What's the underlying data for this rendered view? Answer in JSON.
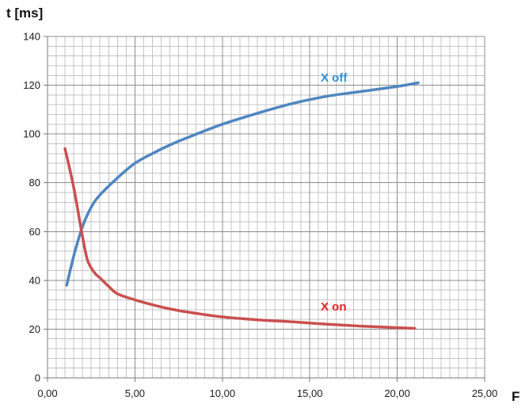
{
  "chart_data": {
    "type": "line",
    "title": "",
    "ylabel": "t [ms]",
    "xlabel": "F",
    "xlim": [
      0,
      25
    ],
    "ylim": [
      0,
      140
    ],
    "x_ticks": [
      0,
      5,
      10,
      15,
      20,
      25
    ],
    "x_tick_labels": [
      "0,00",
      "5,00",
      "10,00",
      "15,00",
      "20,00",
      "25,00"
    ],
    "y_ticks": [
      0,
      20,
      40,
      60,
      80,
      100,
      120,
      140
    ],
    "y_tick_labels": [
      "0",
      "20",
      "40",
      "60",
      "80",
      "100",
      "120",
      "140"
    ],
    "minor_grid_x_step": 0.5,
    "minor_grid_y_step": 4,
    "grid": true,
    "series": [
      {
        "name": "X off",
        "color": "#4f86c0",
        "label_color": "#2e8fd6",
        "points": [
          [
            1.1,
            38
          ],
          [
            1.5,
            50
          ],
          [
            2.0,
            62
          ],
          [
            2.5,
            70
          ],
          [
            3.0,
            75
          ],
          [
            4.0,
            82
          ],
          [
            5.0,
            88
          ],
          [
            6.0,
            92
          ],
          [
            7.0,
            95.5
          ],
          [
            8.0,
            98.5
          ],
          [
            10.0,
            104
          ],
          [
            12.0,
            108.5
          ],
          [
            14.0,
            112.5
          ],
          [
            16.0,
            115.5
          ],
          [
            18.0,
            117.5
          ],
          [
            20.0,
            119.5
          ],
          [
            21.2,
            121
          ]
        ]
      },
      {
        "name": "X on",
        "color": "#c9504f",
        "label_color": "#e02020",
        "points": [
          [
            1.0,
            94
          ],
          [
            1.5,
            78
          ],
          [
            2.0,
            58
          ],
          [
            2.3,
            48
          ],
          [
            2.7,
            43
          ],
          [
            3.0,
            41
          ],
          [
            3.5,
            37.5
          ],
          [
            4.0,
            34.5
          ],
          [
            5.0,
            32
          ],
          [
            6.0,
            30
          ],
          [
            7.0,
            28.3
          ],
          [
            8.0,
            27
          ],
          [
            10.0,
            25
          ],
          [
            12.0,
            23.8
          ],
          [
            14.0,
            23
          ],
          [
            16.0,
            22
          ],
          [
            18.0,
            21.2
          ],
          [
            20.0,
            20.6
          ],
          [
            21.0,
            20.3
          ]
        ]
      }
    ]
  }
}
